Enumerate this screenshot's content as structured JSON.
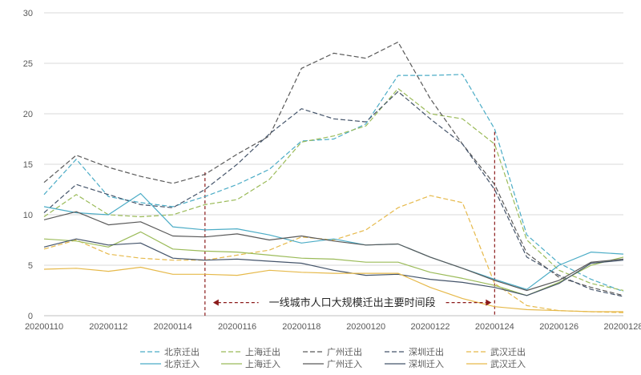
{
  "chart_data": {
    "type": "line",
    "title": "",
    "xlabel": "",
    "ylabel": "",
    "ylim": [
      0,
      30
    ],
    "yticks": [
      0,
      5,
      10,
      15,
      20,
      25,
      30
    ],
    "grid": true,
    "legend_position": "bottom",
    "x": [
      "20200110",
      "20200111",
      "20200112",
      "20200113",
      "20200114",
      "20200115",
      "20200116",
      "20200117",
      "20200118",
      "20200119",
      "20200120",
      "20200121",
      "20200122",
      "20200123",
      "20200124",
      "20200125",
      "20200126",
      "20200127",
      "20200128"
    ],
    "x_tick_labels": [
      "20200110",
      "20200112",
      "20200114",
      "20200116",
      "20200118",
      "20200120",
      "20200122",
      "20200124",
      "20200126",
      "20200128"
    ],
    "series": [
      {
        "name": "北京迁出",
        "dash": true,
        "color": "#4bacc6",
        "values": [
          12.0,
          15.5,
          11.8,
          11.2,
          10.8,
          11.8,
          13.0,
          14.5,
          17.3,
          17.5,
          19.0,
          23.8,
          23.8,
          23.9,
          18.5,
          8.0,
          5.2,
          3.6,
          2.4
        ]
      },
      {
        "name": "上海迁出",
        "dash": true,
        "color": "#9bbb59",
        "values": [
          9.8,
          12.0,
          10.0,
          9.8,
          10.0,
          11.0,
          11.5,
          13.5,
          17.2,
          17.8,
          18.8,
          22.5,
          20.0,
          19.5,
          17.0,
          7.5,
          4.5,
          3.2,
          2.5
        ]
      },
      {
        "name": "广州迁出",
        "dash": true,
        "color": "#595959",
        "values": [
          13.2,
          15.9,
          14.7,
          13.8,
          13.1,
          14.0,
          16.0,
          17.8,
          24.5,
          26.0,
          25.5,
          27.1,
          21.5,
          17.0,
          13.0,
          6.2,
          3.8,
          2.8,
          2.0
        ]
      },
      {
        "name": "深圳迁出",
        "dash": true,
        "color": "#44546a",
        "values": [
          10.2,
          13.0,
          12.0,
          11.0,
          10.7,
          12.5,
          15.0,
          18.0,
          20.5,
          19.5,
          19.2,
          22.2,
          19.5,
          17.0,
          12.5,
          5.8,
          4.0,
          2.6,
          1.9
        ]
      },
      {
        "name": "武汉迁出",
        "dash": true,
        "color": "#e6b94a",
        "values": [
          6.6,
          7.5,
          6.1,
          5.7,
          5.5,
          5.5,
          6.0,
          6.5,
          7.8,
          7.5,
          8.5,
          10.7,
          11.9,
          11.2,
          3.2,
          1.0,
          0.5,
          0.4,
          0.3
        ]
      },
      {
        "name": "北京迁入",
        "dash": false,
        "color": "#4bacc6",
        "values": [
          10.8,
          10.2,
          10.0,
          12.1,
          8.8,
          8.5,
          8.6,
          8.0,
          7.2,
          7.6,
          7.0,
          7.1,
          5.8,
          4.7,
          3.6,
          2.6,
          5.0,
          6.3,
          6.1
        ]
      },
      {
        "name": "上海迁入",
        "dash": false,
        "color": "#9bbb59",
        "values": [
          7.6,
          7.4,
          6.8,
          8.3,
          6.6,
          6.4,
          6.3,
          6.0,
          5.7,
          5.6,
          5.3,
          5.3,
          4.3,
          3.7,
          3.0,
          2.0,
          3.3,
          5.0,
          5.8
        ]
      },
      {
        "name": "广州迁入",
        "dash": false,
        "color": "#595959",
        "values": [
          9.5,
          10.3,
          9.0,
          9.3,
          7.9,
          7.8,
          8.1,
          7.5,
          7.9,
          7.4,
          7.0,
          7.1,
          5.8,
          4.7,
          3.5,
          2.5,
          3.5,
          5.3,
          5.6
        ]
      },
      {
        "name": "深圳迁入",
        "dash": false,
        "color": "#44546a",
        "values": [
          6.8,
          7.6,
          7.0,
          7.2,
          5.7,
          5.5,
          5.6,
          5.4,
          5.2,
          4.5,
          4.0,
          4.1,
          3.6,
          3.3,
          2.8,
          2.0,
          3.2,
          5.2,
          5.5
        ]
      },
      {
        "name": "武汉迁入",
        "dash": false,
        "color": "#e6b94a",
        "values": [
          4.6,
          4.7,
          4.4,
          4.8,
          4.1,
          4.1,
          4.0,
          4.5,
          4.3,
          4.2,
          4.2,
          4.2,
          2.8,
          1.7,
          0.9,
          0.6,
          0.5,
          0.4,
          0.4
        ]
      }
    ],
    "annotations": [
      {
        "text": "一线城市人口大规模迁出主要时间段",
        "x_start": "20200115",
        "x_end": "20200124",
        "y": 1.3,
        "color": "#8b1a1a"
      }
    ],
    "markers": [
      {
        "x": "20200115",
        "y_top": 14.2,
        "color": "#8b1a1a"
      },
      {
        "x": "20200124",
        "y_top": 18.2,
        "color": "#8b1a1a"
      }
    ]
  }
}
